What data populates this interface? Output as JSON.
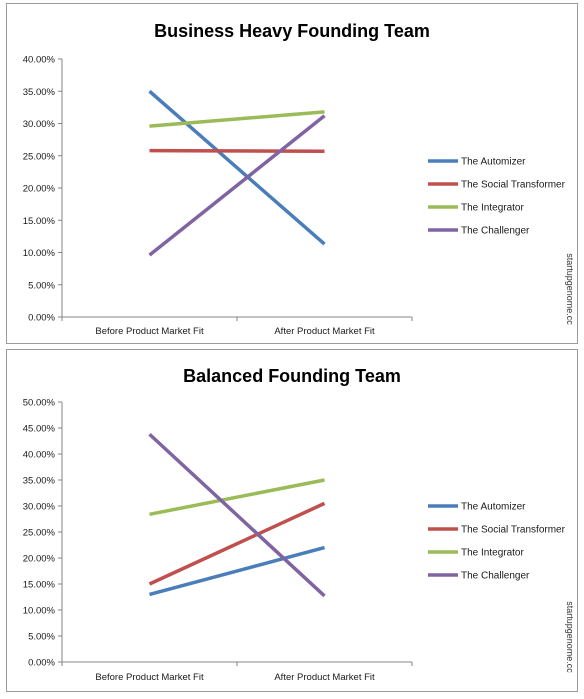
{
  "colors": {
    "automizer": "#4a7ebb",
    "social_transformer": "#c0504d",
    "integrator": "#9bbb59",
    "challenger": "#8064a2"
  },
  "chart_data": [
    {
      "type": "line",
      "title": "Business Heavy Founding Team",
      "categories": [
        "Before Product Market Fit",
        "After Product Market Fit"
      ],
      "y_ticks": [
        "0.00%",
        "5.00%",
        "10.00%",
        "15.00%",
        "20.00%",
        "25.00%",
        "30.00%",
        "35.00%",
        "40.00%"
      ],
      "ylim": [
        0,
        40
      ],
      "grid": false,
      "legend": "right",
      "watermark": "startupgenome.cc",
      "series": [
        {
          "name": "The Automizer",
          "color_key": "automizer",
          "values": [
            35.0,
            11.3
          ]
        },
        {
          "name": "The Social Transformer",
          "color_key": "social_transformer",
          "values": [
            25.8,
            25.7
          ]
        },
        {
          "name": "The Integrator",
          "color_key": "integrator",
          "values": [
            29.6,
            31.8
          ]
        },
        {
          "name": "The Challenger",
          "color_key": "challenger",
          "values": [
            9.6,
            31.2
          ]
        }
      ]
    },
    {
      "type": "line",
      "title": "Balanced Founding Team",
      "categories": [
        "Before Product Market Fit",
        "After Product Market Fit"
      ],
      "y_ticks": [
        "0.00%",
        "5.00%",
        "10.00%",
        "15.00%",
        "20.00%",
        "25.00%",
        "30.00%",
        "35.00%",
        "40.00%",
        "45.00%",
        "50.00%"
      ],
      "ylim": [
        0,
        50
      ],
      "grid": false,
      "legend": "right",
      "watermark": "startupgenome.cc",
      "series": [
        {
          "name": "The Automizer",
          "color_key": "automizer",
          "values": [
            13.0,
            22.0
          ]
        },
        {
          "name": "The Social Transformer",
          "color_key": "social_transformer",
          "values": [
            15.0,
            30.5
          ]
        },
        {
          "name": "The Integrator",
          "color_key": "integrator",
          "values": [
            28.4,
            35.0
          ]
        },
        {
          "name": "The Challenger",
          "color_key": "challenger",
          "values": [
            43.8,
            12.7
          ]
        }
      ]
    }
  ]
}
